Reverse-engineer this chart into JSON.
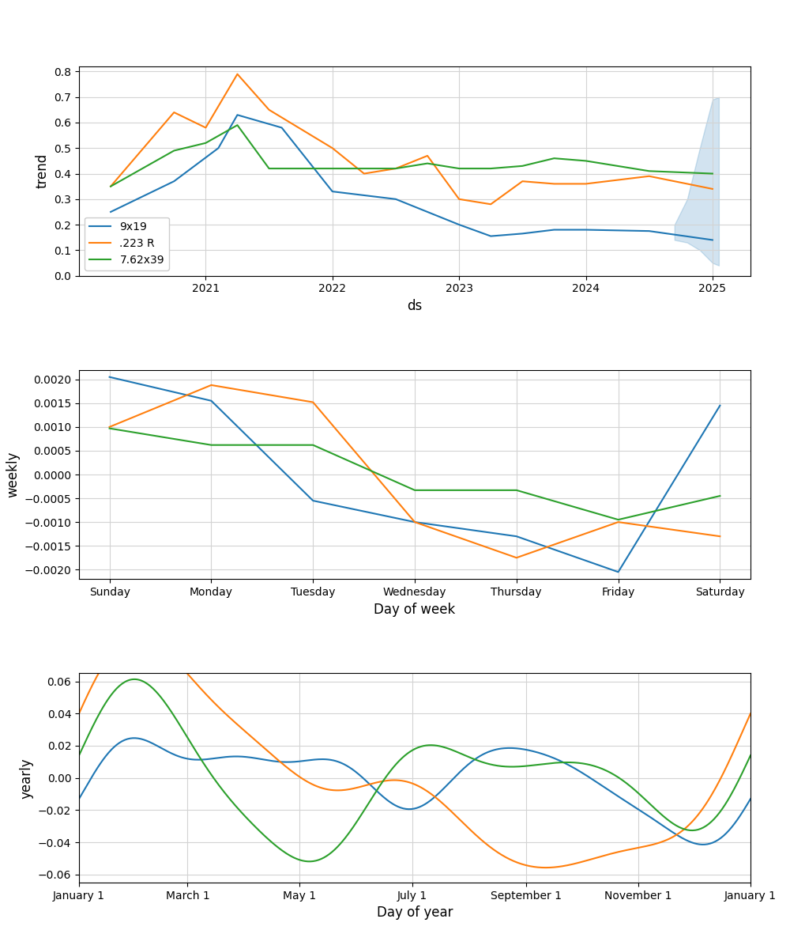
{
  "colors": {
    "blue": "#1f77b4",
    "orange": "#ff7f0e",
    "green": "#2ca02c"
  },
  "legend_labels": [
    "9x19",
    ".223 R",
    "7.62x39"
  ],
  "trend": {
    "xlabel": "ds",
    "ylabel": "trend",
    "blue_x": [
      2020.25,
      2020.75,
      2021.1,
      2021.25,
      2021.6,
      2022.0,
      2022.5,
      2023.0,
      2023.25,
      2023.5,
      2023.75,
      2024.0,
      2024.5,
      2025.0
    ],
    "blue_y": [
      0.25,
      0.37,
      0.5,
      0.63,
      0.58,
      0.33,
      0.3,
      0.2,
      0.155,
      0.165,
      0.18,
      0.18,
      0.175,
      0.14
    ],
    "band_x": [
      2024.7,
      2024.8,
      2024.9,
      2025.0,
      2025.05
    ],
    "band_low": [
      0.14,
      0.13,
      0.1,
      0.05,
      0.04
    ],
    "band_high": [
      0.2,
      0.3,
      0.5,
      0.69,
      0.7
    ],
    "orange_x": [
      2020.25,
      2020.75,
      2021.0,
      2021.25,
      2021.5,
      2022.0,
      2022.25,
      2022.5,
      2022.75,
      2023.0,
      2023.25,
      2023.5,
      2023.75,
      2024.0,
      2024.5,
      2025.0
    ],
    "orange_y": [
      0.35,
      0.64,
      0.58,
      0.79,
      0.65,
      0.5,
      0.4,
      0.42,
      0.47,
      0.3,
      0.28,
      0.37,
      0.36,
      0.36,
      0.39,
      0.34
    ],
    "green_x": [
      2020.25,
      2020.75,
      2021.0,
      2021.25,
      2021.5,
      2022.0,
      2022.25,
      2022.5,
      2022.75,
      2023.0,
      2023.25,
      2023.5,
      2023.75,
      2024.0,
      2024.5,
      2025.0
    ],
    "green_y": [
      0.35,
      0.49,
      0.52,
      0.59,
      0.42,
      0.42,
      0.42,
      0.42,
      0.44,
      0.42,
      0.42,
      0.43,
      0.46,
      0.45,
      0.41,
      0.4
    ],
    "xlim_min": 2020.0,
    "xlim_max": 2025.3,
    "ylim_min": 0.0,
    "ylim_max": 0.82,
    "yticks": [
      0.0,
      0.1,
      0.2,
      0.3,
      0.4,
      0.5,
      0.6,
      0.7,
      0.8
    ],
    "xticks": [
      2021,
      2022,
      2023,
      2024,
      2025
    ]
  },
  "weekly": {
    "xlabel": "Day of week",
    "ylabel": "weekly",
    "days": [
      "Sunday",
      "Monday",
      "Tuesday",
      "Wednesday",
      "Thursday",
      "Friday",
      "Saturday"
    ],
    "blue_y": [
      0.00205,
      0.00155,
      -0.00055,
      -0.001,
      -0.0013,
      -0.00205,
      0.00145
    ],
    "orange_y": [
      0.001,
      0.00188,
      0.00152,
      -0.001,
      -0.00175,
      -0.001,
      -0.0013
    ],
    "green_y": [
      0.00097,
      0.00062,
      0.00062,
      -0.00033,
      -0.00033,
      -0.00095,
      -0.00045
    ],
    "ylim_min": -0.0022,
    "ylim_max": 0.0022,
    "yticks": [
      -0.002,
      -0.0015,
      -0.001,
      -0.0005,
      0.0,
      0.0005,
      0.001,
      0.0015,
      0.002
    ]
  },
  "yearly": {
    "xlabel": "Day of year",
    "ylabel": "yearly",
    "month_ticks": [
      "January 1",
      "March 1",
      "May 1",
      "July 1",
      "September 1",
      "November 1",
      "January 1"
    ],
    "month_positions": [
      0,
      59,
      120,
      181,
      243,
      304,
      365
    ],
    "n_points": 500,
    "ylim_min": -0.065,
    "ylim_max": 0.065,
    "yticks": [
      -0.06,
      -0.04,
      -0.02,
      0.0,
      0.02,
      0.04,
      0.06
    ],
    "blue_fourier": {
      "sin_coefs": [
        0.01,
        0.016,
        0.008,
        0.006,
        0.003
      ],
      "cos_coefs": [
        -0.005,
        -0.01,
        0.008,
        -0.004,
        0.002
      ],
      "n_terms": 5
    },
    "orange_fourier": {
      "sin_coefs": [
        0.048,
        0.018,
        0.008,
        0.005,
        0.002
      ],
      "cos_coefs": [
        0.03,
        0.015,
        -0.005,
        0.003,
        -0.002
      ],
      "n_terms": 5
    },
    "green_fourier": {
      "sin_coefs": [
        -0.005,
        0.035,
        0.015,
        0.005,
        0.003
      ],
      "cos_coefs": [
        0.01,
        0.01,
        -0.01,
        0.005,
        -0.002
      ],
      "n_terms": 5
    }
  }
}
